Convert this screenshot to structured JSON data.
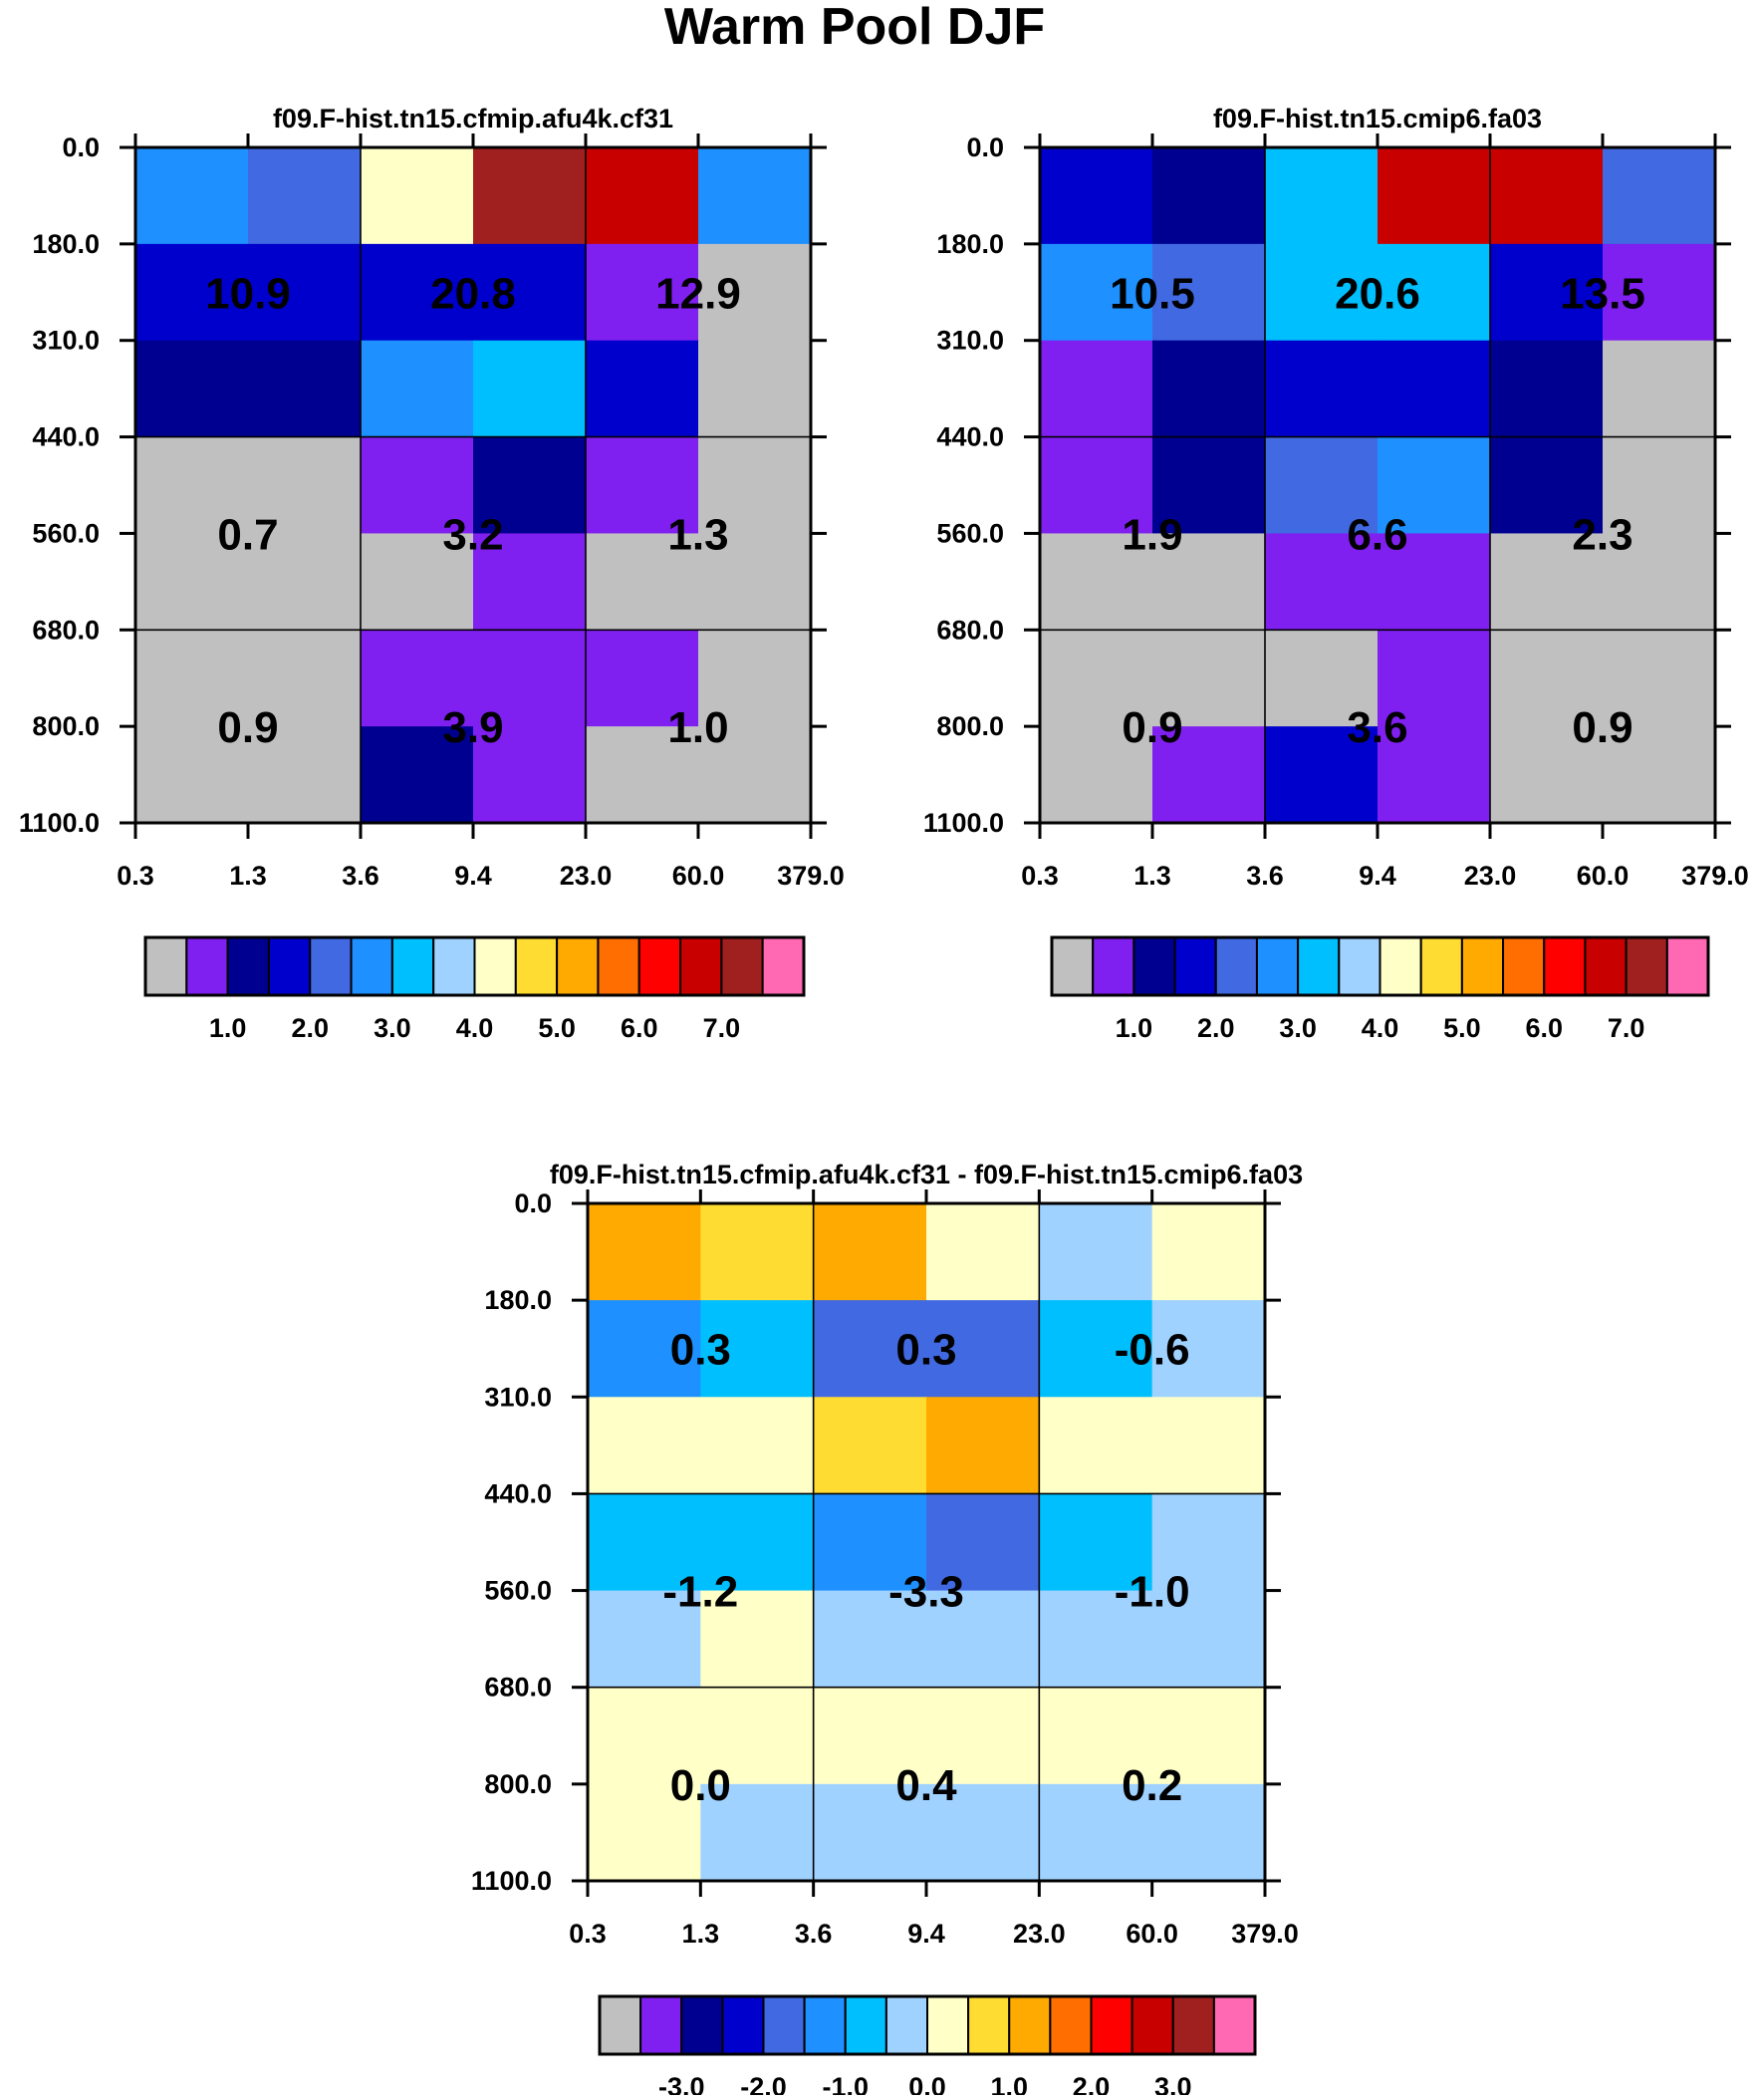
{
  "page_title": "Warm Pool DJF",
  "chart_data": [
    {
      "type": "heatmap",
      "title": "f09.F-hist.tn15.cfmip.afu4k.cf31",
      "x_tick_labels": [
        "0.3",
        "1.3",
        "3.6",
        "9.4",
        "23.0",
        "60.0",
        "379.0"
      ],
      "y_tick_labels": [
        "0.0",
        "180.0",
        "310.0",
        "440.0",
        "560.0",
        "680.0",
        "800.0",
        "1100.0"
      ],
      "cell_color_index": [
        [
          5,
          4,
          8,
          14,
          13,
          5
        ],
        [
          3,
          3,
          3,
          3,
          1,
          0
        ],
        [
          2,
          2,
          5,
          6,
          3,
          0
        ],
        [
          0,
          0,
          1,
          2,
          1,
          0
        ],
        [
          0,
          0,
          0,
          1,
          0,
          0
        ],
        [
          0,
          0,
          1,
          1,
          1,
          0
        ],
        [
          0,
          0,
          2,
          1,
          0,
          0
        ]
      ],
      "group_values": [
        [
          "10.9",
          "20.8",
          "12.9"
        ],
        [
          "0.7",
          "3.2",
          "1.3"
        ],
        [
          "0.9",
          "3.9",
          "1.0"
        ]
      ],
      "colorbar": {
        "colors": [
          "#c0c0c0",
          "#8020f0",
          "#000090",
          "#0000cd",
          "#4169e1",
          "#1e90ff",
          "#00bfff",
          "#a0d2ff",
          "#ffffc8",
          "#ffdc32",
          "#ffaa00",
          "#ff6e00",
          "#ff0000",
          "#c80000",
          "#a02020",
          "#ff69b4"
        ],
        "labels": [
          "1.0",
          "2.0",
          "3.0",
          "4.0",
          "5.0",
          "6.0",
          "7.0"
        ]
      }
    },
    {
      "type": "heatmap",
      "title": "f09.F-hist.tn15.cmip6.fa03",
      "x_tick_labels": [
        "0.3",
        "1.3",
        "3.6",
        "9.4",
        "23.0",
        "60.0",
        "379.0"
      ],
      "y_tick_labels": [
        "0.0",
        "180.0",
        "310.0",
        "440.0",
        "560.0",
        "680.0",
        "800.0",
        "1100.0"
      ],
      "cell_color_index": [
        [
          3,
          2,
          6,
          13,
          13,
          4
        ],
        [
          5,
          4,
          6,
          6,
          3,
          1
        ],
        [
          1,
          2,
          3,
          3,
          2,
          0
        ],
        [
          1,
          2,
          4,
          5,
          2,
          0
        ],
        [
          0,
          0,
          1,
          1,
          0,
          0
        ],
        [
          0,
          0,
          0,
          1,
          0,
          0
        ],
        [
          0,
          1,
          3,
          1,
          0,
          0
        ]
      ],
      "group_values": [
        [
          "10.5",
          "20.6",
          "13.5"
        ],
        [
          "1.9",
          "6.6",
          "2.3"
        ],
        [
          "0.9",
          "3.6",
          "0.9"
        ]
      ],
      "colorbar": {
        "colors": [
          "#c0c0c0",
          "#8020f0",
          "#000090",
          "#0000cd",
          "#4169e1",
          "#1e90ff",
          "#00bfff",
          "#a0d2ff",
          "#ffffc8",
          "#ffdc32",
          "#ffaa00",
          "#ff6e00",
          "#ff0000",
          "#c80000",
          "#a02020",
          "#ff69b4"
        ],
        "labels": [
          "1.0",
          "2.0",
          "3.0",
          "4.0",
          "5.0",
          "6.0",
          "7.0"
        ]
      }
    },
    {
      "type": "heatmap",
      "title": "f09.F-hist.tn15.cfmip.afu4k.cf31 - f09.F-hist.tn15.cmip6.fa03",
      "x_tick_labels": [
        "0.3",
        "1.3",
        "3.6",
        "9.4",
        "23.0",
        "60.0",
        "379.0"
      ],
      "y_tick_labels": [
        "0.0",
        "180.0",
        "310.0",
        "440.0",
        "560.0",
        "680.0",
        "800.0",
        "1100.0"
      ],
      "cell_color_index": [
        [
          10,
          9,
          10,
          8,
          7,
          8
        ],
        [
          5,
          6,
          4,
          4,
          6,
          7
        ],
        [
          8,
          8,
          9,
          10,
          8,
          8
        ],
        [
          6,
          6,
          5,
          4,
          6,
          7
        ],
        [
          7,
          8,
          7,
          7,
          7,
          7
        ],
        [
          8,
          8,
          8,
          8,
          8,
          8
        ],
        [
          8,
          7,
          7,
          7,
          7,
          7
        ]
      ],
      "group_values": [
        [
          "0.3",
          "0.3",
          "-0.6"
        ],
        [
          "-1.2",
          "-3.3",
          "-1.0"
        ],
        [
          "0.0",
          "0.4",
          "0.2"
        ]
      ],
      "colorbar": {
        "colors": [
          "#c0c0c0",
          "#8020f0",
          "#000090",
          "#0000cd",
          "#4169e1",
          "#1e90ff",
          "#00bfff",
          "#a0d2ff",
          "#ffffc8",
          "#ffdc32",
          "#ffaa00",
          "#ff6e00",
          "#ff0000",
          "#c80000",
          "#a02020",
          "#ff69b4"
        ],
        "labels": [
          "-3.0",
          "-2.0",
          "-1.0",
          "0.0",
          "1.0",
          "2.0",
          "3.0"
        ]
      }
    }
  ]
}
